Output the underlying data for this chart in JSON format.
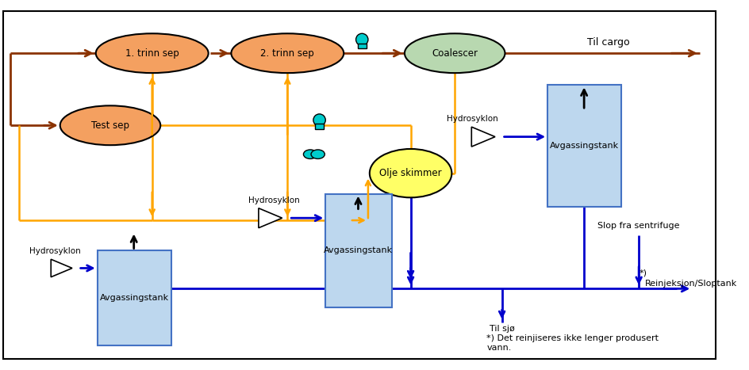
{
  "bg": "#ffffff",
  "brown": "#8B3300",
  "orange": "#FFA500",
  "blue": "#0000CC",
  "black": "#000000",
  "ellipse_fill": "#F4A060",
  "coalescer_fill": "#B8D8B0",
  "tank_fill": "#BDD7EE",
  "tank_stroke": "#4472C4",
  "skimmer_fill": "#FFFF66",
  "cyan": "#00CCCC",
  "sep1_label": "1. trinn sep",
  "sep2_label": "2. trinn sep",
  "test_sep_label": "Test sep",
  "coalescer_label": "Coalescer",
  "avgass_label": "Avgassingstank",
  "olje_label": "Olje skimmer",
  "hydro1_label": "Hydrosyklon",
  "hydro2_label": "Hydrosyklon",
  "hydro3_label": "Hydrosyklon",
  "til_cargo_label": "Til cargo",
  "slop_label": "Slop fra sentrifuge",
  "reinjeksjon_label": "Reinjeksjon/Sloptank",
  "til_sjo_label": "Til sjø",
  "footnote1": "*) Det reinjiseres ikke lenger produsert",
  "footnote2": "vann."
}
